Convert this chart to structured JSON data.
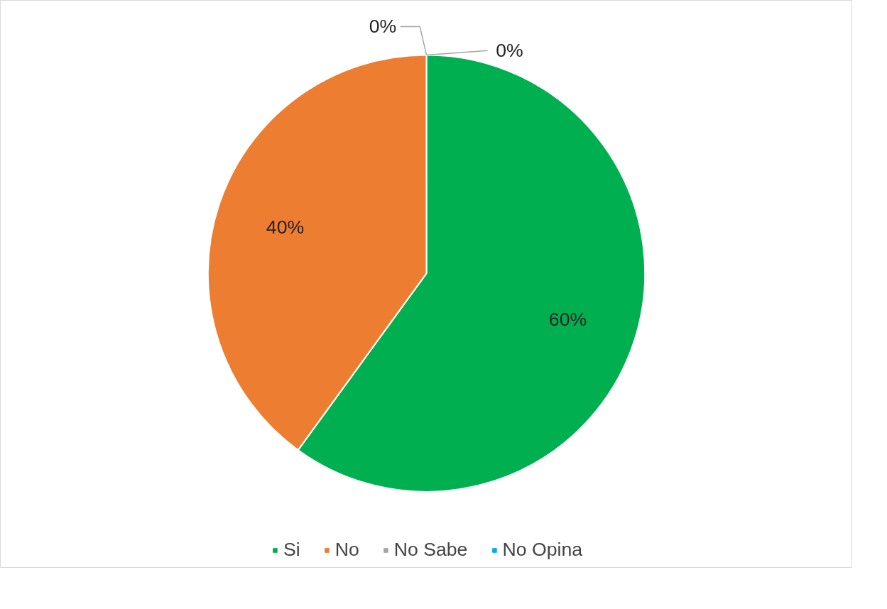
{
  "chart_data": {
    "type": "pie",
    "categories": [
      "Si",
      "No",
      "No Sabe",
      "No Opina"
    ],
    "values": [
      60,
      40,
      0,
      0
    ],
    "colors": [
      "#00b050",
      "#ed7d31",
      "#a5a5a5",
      "#00b0f0"
    ],
    "value_labels": [
      "60%",
      "40%",
      "0%",
      "0%"
    ],
    "legend": "bottom"
  }
}
